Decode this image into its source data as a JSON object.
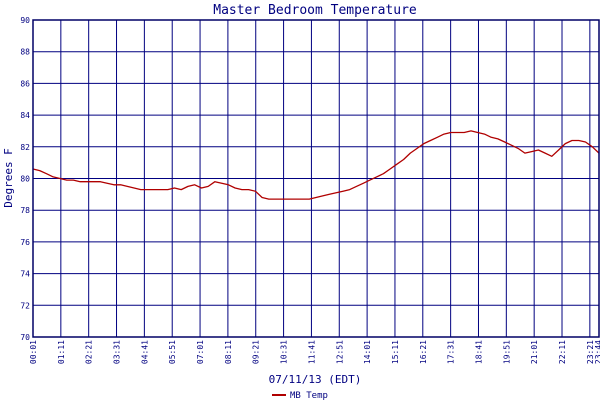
{
  "colors": {
    "background": "#ffffff",
    "frame": "#000066",
    "grid": "#000080",
    "text": "#000080",
    "series": "#b00000"
  },
  "chart_data": {
    "type": "line",
    "title": "Master Bedroom Temperature",
    "xlabel": "07/11/13 (EDT)",
    "ylabel": "Degrees F",
    "ylim": [
      70,
      90
    ],
    "yticks": [
      70,
      72,
      74,
      76,
      78,
      80,
      82,
      84,
      86,
      88,
      90
    ],
    "xticks": [
      "00:01",
      "01:11",
      "02:21",
      "03:31",
      "04:41",
      "05:51",
      "07:01",
      "08:11",
      "09:21",
      "10:31",
      "11:41",
      "12:51",
      "14:01",
      "15:11",
      "16:21",
      "17:31",
      "18:41",
      "19:51",
      "21:01",
      "22:11",
      "23:21",
      "23:44"
    ],
    "grid": true,
    "legend_position": "bottom-left",
    "series": [
      {
        "name": "MB Temp",
        "x_start": "00:01",
        "x_end": "23:44",
        "values": [
          80.6,
          80.5,
          80.3,
          80.1,
          80.0,
          79.9,
          79.9,
          79.8,
          79.8,
          79.8,
          79.8,
          79.7,
          79.6,
          79.6,
          79.5,
          79.4,
          79.3,
          79.3,
          79.3,
          79.3,
          79.3,
          79.4,
          79.3,
          79.5,
          79.6,
          79.4,
          79.5,
          79.8,
          79.7,
          79.6,
          79.4,
          79.3,
          79.3,
          79.2,
          78.8,
          78.7,
          78.7,
          78.7,
          78.7,
          78.7,
          78.7,
          78.7,
          78.8,
          78.9,
          79.0,
          79.1,
          79.2,
          79.3,
          79.5,
          79.7,
          79.9,
          80.1,
          80.3,
          80.6,
          80.9,
          81.2,
          81.6,
          81.9,
          82.2,
          82.4,
          82.6,
          82.8,
          82.9,
          82.9,
          82.9,
          83.0,
          82.9,
          82.8,
          82.6,
          82.5,
          82.3,
          82.1,
          81.9,
          81.6,
          81.7,
          81.8,
          81.6,
          81.4,
          81.8,
          82.2,
          82.4,
          82.4,
          82.3,
          82.0,
          81.6
        ]
      }
    ]
  }
}
